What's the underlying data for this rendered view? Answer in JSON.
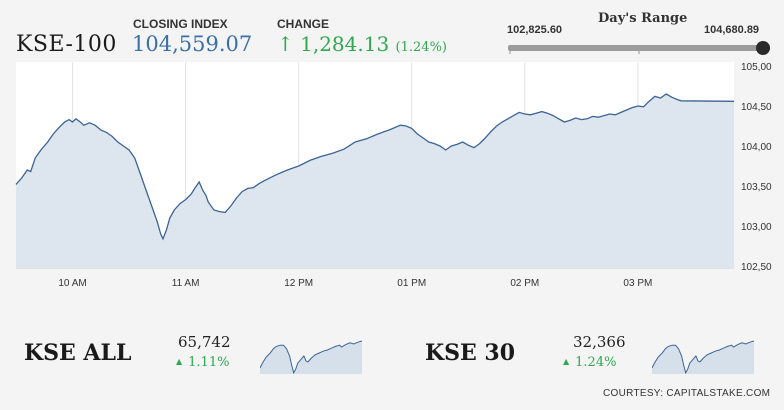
{
  "header": {
    "ticker": "KSE-100",
    "closing_label": "CLOSING INDEX",
    "closing_value": "104,559.07",
    "change_label": "CHANGE",
    "change_arrow": "↑",
    "change_value": "1,284.13",
    "change_pct": "(1.24%)",
    "accent_color": "#3a6fa8",
    "up_color": "#2fa84f"
  },
  "days_range": {
    "title": "Day's Range",
    "low_label": "102,825.60",
    "high_label": "104,680.89",
    "current_fraction": 1.0
  },
  "chart_data": {
    "type": "area",
    "title": "",
    "xlabel": "",
    "ylabel": "",
    "x_ticks": [
      "10 AM",
      "11 AM",
      "12 PM",
      "01 PM",
      "02 PM",
      "03 PM"
    ],
    "y_ticks": [
      "102,50",
      "103,00",
      "103,50",
      "104,00",
      "104,50",
      "105,00"
    ],
    "y_tick_values": [
      102500,
      103000,
      103500,
      104000,
      104500,
      105000
    ],
    "ylim": [
      102500,
      105000
    ],
    "x_range_hours": [
      9.5,
      15.85
    ],
    "x_tick_hours": [
      10,
      11,
      12,
      13,
      14,
      15
    ],
    "grid": "vertical",
    "line_color": "#3b6494",
    "fill_color": "#dde6ee",
    "series": [
      {
        "points": [
          [
            9.5,
            103520
          ],
          [
            9.55,
            103600
          ],
          [
            9.6,
            103700
          ],
          [
            9.63,
            103680
          ],
          [
            9.67,
            103850
          ],
          [
            9.72,
            103950
          ],
          [
            9.78,
            104050
          ],
          [
            9.83,
            104150
          ],
          [
            9.88,
            104230
          ],
          [
            9.93,
            104300
          ],
          [
            9.97,
            104330
          ],
          [
            10.0,
            104300
          ],
          [
            10.03,
            104340
          ],
          [
            10.06,
            104310
          ],
          [
            10.1,
            104260
          ],
          [
            10.15,
            104290
          ],
          [
            10.2,
            104260
          ],
          [
            10.25,
            104200
          ],
          [
            10.3,
            104170
          ],
          [
            10.35,
            104120
          ],
          [
            10.4,
            104050
          ],
          [
            10.45,
            104000
          ],
          [
            10.5,
            103950
          ],
          [
            10.55,
            103850
          ],
          [
            10.6,
            103650
          ],
          [
            10.65,
            103450
          ],
          [
            10.7,
            103250
          ],
          [
            10.75,
            103050
          ],
          [
            10.78,
            102900
          ],
          [
            10.8,
            102840
          ],
          [
            10.83,
            102950
          ],
          [
            10.86,
            103100
          ],
          [
            10.9,
            103200
          ],
          [
            10.95,
            103280
          ],
          [
            11.0,
            103330
          ],
          [
            11.05,
            103400
          ],
          [
            11.08,
            103470
          ],
          [
            11.12,
            103550
          ],
          [
            11.15,
            103450
          ],
          [
            11.18,
            103380
          ],
          [
            11.2,
            103300
          ],
          [
            11.25,
            103200
          ],
          [
            11.3,
            103180
          ],
          [
            11.35,
            103170
          ],
          [
            11.4,
            103250
          ],
          [
            11.45,
            103350
          ],
          [
            11.5,
            103430
          ],
          [
            11.55,
            103470
          ],
          [
            11.6,
            103480
          ],
          [
            11.65,
            103530
          ],
          [
            11.7,
            103570
          ],
          [
            11.8,
            103640
          ],
          [
            11.9,
            103700
          ],
          [
            12.0,
            103750
          ],
          [
            12.1,
            103820
          ],
          [
            12.2,
            103870
          ],
          [
            12.3,
            103910
          ],
          [
            12.4,
            103960
          ],
          [
            12.5,
            104050
          ],
          [
            12.6,
            104090
          ],
          [
            12.7,
            104150
          ],
          [
            12.8,
            104200
          ],
          [
            12.9,
            104260
          ],
          [
            12.95,
            104250
          ],
          [
            13.0,
            104220
          ],
          [
            13.05,
            104150
          ],
          [
            13.1,
            104100
          ],
          [
            13.15,
            104050
          ],
          [
            13.2,
            104030
          ],
          [
            13.25,
            104000
          ],
          [
            13.3,
            103950
          ],
          [
            13.35,
            104000
          ],
          [
            13.4,
            104020
          ],
          [
            13.45,
            104050
          ],
          [
            13.5,
            104010
          ],
          [
            13.55,
            103980
          ],
          [
            13.6,
            104030
          ],
          [
            13.65,
            104100
          ],
          [
            13.7,
            104180
          ],
          [
            13.75,
            104250
          ],
          [
            13.8,
            104300
          ],
          [
            13.85,
            104340
          ],
          [
            13.9,
            104380
          ],
          [
            13.95,
            104420
          ],
          [
            14.0,
            104400
          ],
          [
            14.05,
            104390
          ],
          [
            14.1,
            104410
          ],
          [
            14.15,
            104430
          ],
          [
            14.2,
            104410
          ],
          [
            14.25,
            104380
          ],
          [
            14.3,
            104340
          ],
          [
            14.35,
            104300
          ],
          [
            14.4,
            104320
          ],
          [
            14.45,
            104350
          ],
          [
            14.5,
            104330
          ],
          [
            14.55,
            104340
          ],
          [
            14.6,
            104370
          ],
          [
            14.65,
            104360
          ],
          [
            14.7,
            104380
          ],
          [
            14.75,
            104400
          ],
          [
            14.8,
            104390
          ],
          [
            14.85,
            104420
          ],
          [
            14.9,
            104450
          ],
          [
            14.95,
            104480
          ],
          [
            15.0,
            104500
          ],
          [
            15.05,
            104490
          ],
          [
            15.1,
            104560
          ],
          [
            15.15,
            104620
          ],
          [
            15.2,
            104600
          ],
          [
            15.25,
            104650
          ],
          [
            15.3,
            104610
          ],
          [
            15.35,
            104580
          ],
          [
            15.38,
            104565
          ],
          [
            15.85,
            104559
          ]
        ]
      }
    ]
  },
  "indices": [
    {
      "name": "KSE ALL",
      "value": "65,742",
      "change": "1.11%",
      "spark_points": [
        [
          0,
          60
        ],
        [
          3,
          50
        ],
        [
          6,
          42
        ],
        [
          10,
          35
        ],
        [
          13,
          28
        ],
        [
          16,
          24
        ],
        [
          20,
          22
        ],
        [
          23,
          22
        ],
        [
          26,
          28
        ],
        [
          29,
          40
        ],
        [
          31,
          55
        ],
        [
          33,
          68
        ],
        [
          35,
          62
        ],
        [
          37,
          52
        ],
        [
          40,
          46
        ],
        [
          43,
          40
        ],
        [
          45,
          48
        ],
        [
          47,
          50
        ],
        [
          50,
          44
        ],
        [
          54,
          38
        ],
        [
          58,
          35
        ],
        [
          62,
          32
        ],
        [
          66,
          30
        ],
        [
          70,
          27
        ],
        [
          74,
          24
        ],
        [
          78,
          22
        ],
        [
          80,
          25
        ],
        [
          84,
          21
        ],
        [
          88,
          18
        ],
        [
          92,
          20
        ],
        [
          96,
          17
        ],
        [
          100,
          15
        ]
      ]
    },
    {
      "name": "KSE 30",
      "value": "32,366",
      "change": "1.24%",
      "spark_points": [
        [
          0,
          60
        ],
        [
          3,
          50
        ],
        [
          6,
          42
        ],
        [
          10,
          35
        ],
        [
          13,
          28
        ],
        [
          16,
          24
        ],
        [
          20,
          22
        ],
        [
          23,
          22
        ],
        [
          26,
          28
        ],
        [
          29,
          40
        ],
        [
          31,
          55
        ],
        [
          33,
          68
        ],
        [
          35,
          62
        ],
        [
          37,
          52
        ],
        [
          40,
          46
        ],
        [
          43,
          40
        ],
        [
          45,
          48
        ],
        [
          47,
          50
        ],
        [
          50,
          44
        ],
        [
          54,
          38
        ],
        [
          58,
          35
        ],
        [
          62,
          32
        ],
        [
          66,
          30
        ],
        [
          70,
          27
        ],
        [
          74,
          24
        ],
        [
          78,
          22
        ],
        [
          80,
          25
        ],
        [
          84,
          21
        ],
        [
          88,
          18
        ],
        [
          92,
          20
        ],
        [
          96,
          17
        ],
        [
          100,
          15
        ]
      ]
    }
  ],
  "footer": {
    "courtesy": "COURTESY: CAPITALSTAKE.COM"
  }
}
